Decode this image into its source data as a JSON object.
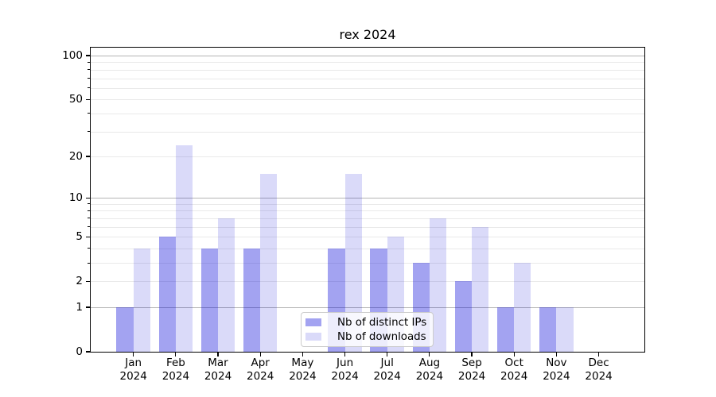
{
  "chart_data": {
    "type": "bar",
    "title": "rex 2024",
    "categories": [
      {
        "month": "Jan",
        "year": "2024"
      },
      {
        "month": "Feb",
        "year": "2024"
      },
      {
        "month": "Mar",
        "year": "2024"
      },
      {
        "month": "Apr",
        "year": "2024"
      },
      {
        "month": "May",
        "year": "2024"
      },
      {
        "month": "Jun",
        "year": "2024"
      },
      {
        "month": "Jul",
        "year": "2024"
      },
      {
        "month": "Aug",
        "year": "2024"
      },
      {
        "month": "Sep",
        "year": "2024"
      },
      {
        "month": "Oct",
        "year": "2024"
      },
      {
        "month": "Nov",
        "year": "2024"
      },
      {
        "month": "Dec",
        "year": "2024"
      }
    ],
    "series": [
      {
        "name": "Nb of distinct IPs",
        "color": "rgba(0,0,215,0.36)",
        "values": [
          1,
          5,
          4,
          4,
          0,
          4,
          4,
          3,
          2,
          1,
          1,
          0
        ]
      },
      {
        "name": "Nb of downloads",
        "color": "rgba(0,0,215,0.145)",
        "values": [
          4,
          24,
          7,
          15,
          0,
          15,
          5,
          7,
          6,
          3,
          1,
          0
        ]
      }
    ],
    "xlabel": "",
    "ylabel": "",
    "yscale": "log1p",
    "ylim": [
      0,
      113
    ],
    "yticks": [
      0,
      1,
      2,
      5,
      10,
      20,
      50,
      100
    ],
    "major_gridlines": [
      1,
      10,
      100
    ],
    "minor_gridlines": [
      2,
      3,
      4,
      5,
      6,
      7,
      8,
      9,
      20,
      30,
      40,
      50,
      60,
      70,
      80,
      90
    ],
    "grid": true,
    "legend_position": "lower center"
  },
  "colors": {
    "background": "#ffffff",
    "axis": "#000000",
    "major_grid": "#b4b4b4",
    "minor_grid": "#e9e9e9",
    "legend_border": "#cccccc"
  }
}
